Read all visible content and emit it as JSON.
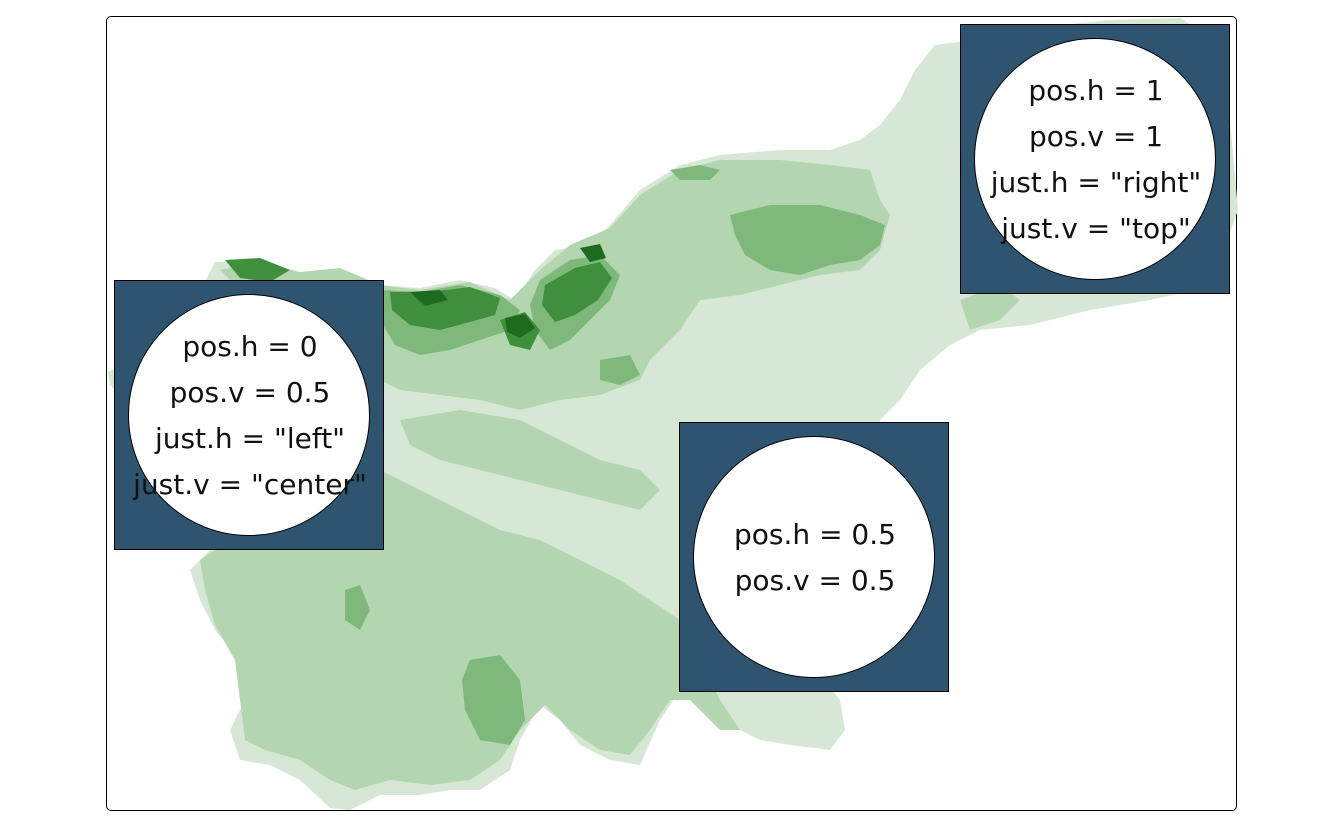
{
  "colors": {
    "frame": "#000000",
    "box_fill": "#2e5470",
    "circle_fill": "#ffffff",
    "elev_1": "#d7e7d6",
    "elev_2": "#b3d6b1",
    "elev_3": "#7eb97b",
    "elev_4": "#3f8f3c",
    "elev_5": "#1e6b1f"
  },
  "legend_boxes": [
    {
      "id": "center",
      "lines": [
        "pos.h = 0.5",
        "pos.v = 0.5"
      ]
    },
    {
      "id": "left",
      "lines": [
        "pos.h = 0",
        "pos.v = 0.5",
        "just.h = \"left\"",
        "just.v = \"center\""
      ]
    },
    {
      "id": "top-right",
      "lines": [
        "pos.h = 1",
        "pos.v = 1",
        "just.h = \"right\"",
        "just.v = \"top\""
      ]
    }
  ]
}
